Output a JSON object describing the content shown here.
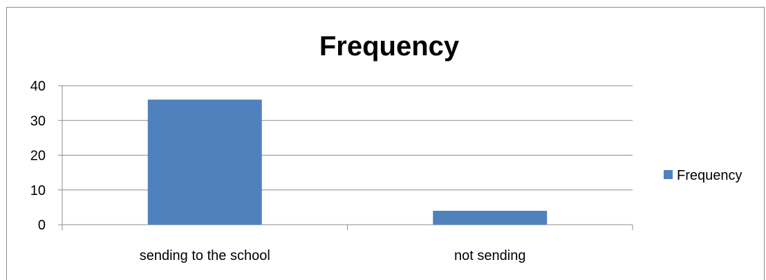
{
  "chart_data": {
    "type": "bar",
    "title": "Frequency",
    "categories": [
      "sending to the school",
      "not sending"
    ],
    "series": [
      {
        "name": "Frequency",
        "values": [
          36,
          4
        ],
        "color": "#4F81BD"
      }
    ],
    "ylim": [
      0,
      40
    ],
    "yticks": [
      "0",
      "10",
      "20",
      "30",
      "40"
    ],
    "grid": true,
    "legend_position": "right"
  }
}
